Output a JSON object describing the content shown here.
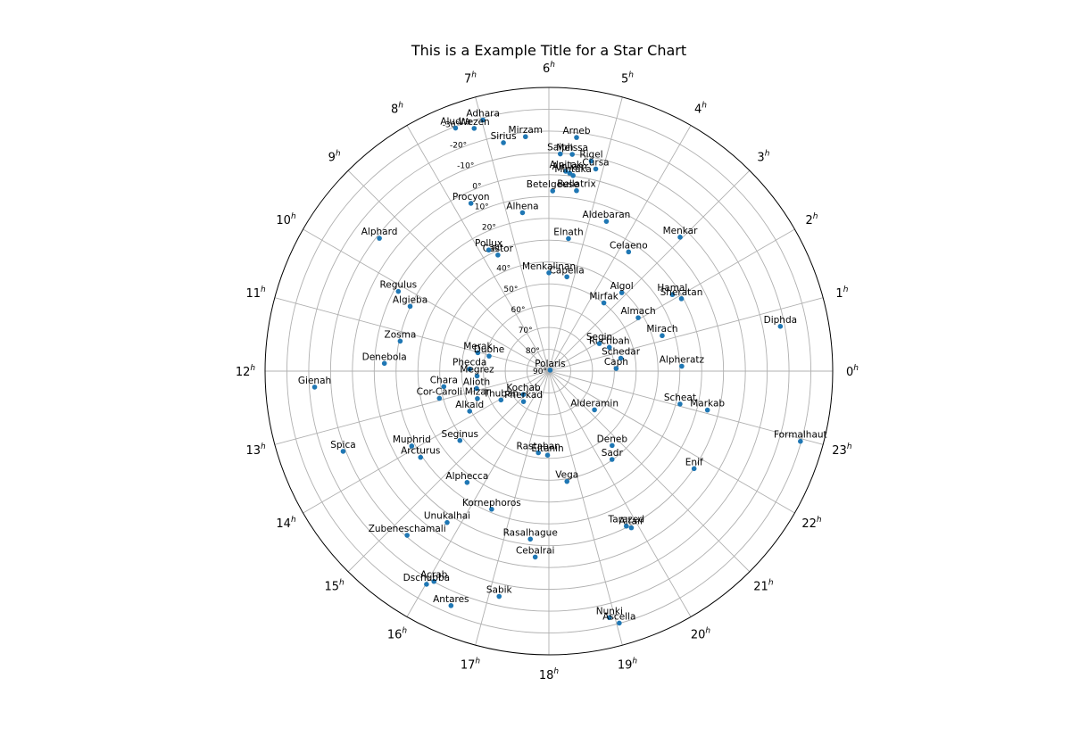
{
  "chart_data": {
    "type": "scatter",
    "projection": "polar",
    "title": "This is a Example Title for a Star Chart",
    "x_axis": {
      "quantity": "right ascension",
      "unit": "h",
      "range": [
        0,
        24
      ],
      "direction": "counterclockwise",
      "zero_position": "right"
    },
    "r_axis": {
      "quantity": "declination",
      "unit": "deg",
      "range": [
        90,
        -40
      ],
      "center_value": 90
    },
    "ra_ticks": [
      0,
      1,
      2,
      3,
      4,
      5,
      6,
      7,
      8,
      9,
      10,
      11,
      12,
      13,
      14,
      15,
      16,
      17,
      18,
      19,
      20,
      21,
      22,
      23
    ],
    "ra_tick_unit": "h",
    "dec_ticks": [
      "-30°",
      "-20°",
      "-10°",
      "0°",
      "10°",
      "20°",
      "30°",
      "40°",
      "50°",
      "60°",
      "70°",
      "80°",
      "90°"
    ],
    "dec_tick_values": [
      -30,
      -20,
      -10,
      0,
      10,
      20,
      30,
      40,
      50,
      60,
      70,
      80,
      90
    ],
    "grid": true,
    "marker_color": "#1f77b4",
    "stars": [
      {
        "name": "Polaris",
        "ra": 2.53,
        "dec": 89.26
      },
      {
        "name": "Kochab",
        "ra": 14.84,
        "dec": 74.16
      },
      {
        "name": "Pherkad",
        "ra": 15.35,
        "dec": 71.83
      },
      {
        "name": "Caph",
        "ra": 0.15,
        "dec": 59.15
      },
      {
        "name": "Schedar",
        "ra": 0.68,
        "dec": 56.54
      },
      {
        "name": "Ruchbah",
        "ra": 1.43,
        "dec": 60.24
      },
      {
        "name": "Segin",
        "ra": 1.91,
        "dec": 63.67
      },
      {
        "name": "Alpheratz",
        "ra": 0.14,
        "dec": 29.09
      },
      {
        "name": "Mirach",
        "ra": 1.16,
        "dec": 35.62
      },
      {
        "name": "Almach",
        "ra": 2.06,
        "dec": 42.33
      },
      {
        "name": "Hamal",
        "ra": 2.12,
        "dec": 23.46
      },
      {
        "name": "Sheratan",
        "ra": 1.91,
        "dec": 20.81
      },
      {
        "name": "Menkar",
        "ra": 3.04,
        "dec": 4.09
      },
      {
        "name": "Diphda",
        "ra": 0.73,
        "dec": -17.99
      },
      {
        "name": "Algol",
        "ra": 3.14,
        "dec": 40.96
      },
      {
        "name": "Mirfak",
        "ra": 3.41,
        "dec": 49.86
      },
      {
        "name": "Elnath",
        "ra": 5.44,
        "dec": 28.61
      },
      {
        "name": "Celaeno",
        "ra": 3.75,
        "dec": 24.29
      },
      {
        "name": "Aldebaran",
        "ra": 4.6,
        "dec": 16.51
      },
      {
        "name": "Capella",
        "ra": 5.28,
        "dec": 46.0
      },
      {
        "name": "Menkalinan",
        "ra": 6.0,
        "dec": 44.95
      },
      {
        "name": "Bellatrix",
        "ra": 5.42,
        "dec": 6.35
      },
      {
        "name": "Betelgeuse",
        "ra": 5.92,
        "dec": 7.41
      },
      {
        "name": "Alnitak",
        "ra": 5.68,
        "dec": -1.94
      },
      {
        "name": "Alnilam",
        "ra": 5.6,
        "dec": -1.2
      },
      {
        "name": "Mintaka",
        "ra": 5.53,
        "dec": -0.3
      },
      {
        "name": "Rigel",
        "ra": 5.24,
        "dec": -8.2
      },
      {
        "name": "Saiph",
        "ra": 5.8,
        "dec": -9.67
      },
      {
        "name": "Meissa",
        "ra": 5.59,
        "dec": -9.9
      },
      {
        "name": "Cursa",
        "ra": 5.13,
        "dec": -5.09
      },
      {
        "name": "Arneb",
        "ra": 5.55,
        "dec": -17.82
      },
      {
        "name": "Sirius",
        "ra": 6.75,
        "dec": -16.72
      },
      {
        "name": "Mirzam",
        "ra": 6.38,
        "dec": -17.96
      },
      {
        "name": "Adhara",
        "ra": 6.98,
        "dec": -28.97
      },
      {
        "name": "Wezen",
        "ra": 7.14,
        "dec": -26.39
      },
      {
        "name": "Aludra",
        "ra": 7.4,
        "dec": -29.3
      },
      {
        "name": "Procyon",
        "ra": 7.66,
        "dec": 5.22
      },
      {
        "name": "Alhena",
        "ra": 6.63,
        "dec": 16.4
      },
      {
        "name": "Castor",
        "ra": 7.58,
        "dec": 31.89
      },
      {
        "name": "Pollux",
        "ra": 7.76,
        "dec": 28.03
      },
      {
        "name": "Alphard",
        "ra": 9.46,
        "dec": -8.66
      },
      {
        "name": "Regulus",
        "ra": 10.14,
        "dec": 11.97
      },
      {
        "name": "Algieba",
        "ra": 10.33,
        "dec": 19.84
      },
      {
        "name": "Zosma",
        "ra": 11.24,
        "dec": 20.52
      },
      {
        "name": "Denebola",
        "ra": 11.82,
        "dec": 14.57
      },
      {
        "name": "Merak",
        "ra": 11.03,
        "dec": 56.38
      },
      {
        "name": "Dubhe",
        "ra": 11.06,
        "dec": 61.75
      },
      {
        "name": "Phecda",
        "ra": 11.9,
        "dec": 53.69
      },
      {
        "name": "Megrez",
        "ra": 12.26,
        "dec": 57.03
      },
      {
        "name": "Alioth",
        "ra": 12.9,
        "dec": 55.96
      },
      {
        "name": "Mizar",
        "ra": 13.4,
        "dec": 54.93
      },
      {
        "name": "Alkaid",
        "ra": 13.79,
        "dec": 49.31
      },
      {
        "name": "Chara",
        "ra": 12.56,
        "dec": 41.36
      },
      {
        "name": "Cor-Caroli",
        "ra": 12.93,
        "dec": 38.32
      },
      {
        "name": "Thuban",
        "ra": 14.07,
        "dec": 64.38
      },
      {
        "name": "Gienah",
        "ra": 12.26,
        "dec": -17.54
      },
      {
        "name": "Spica",
        "ra": 13.42,
        "dec": -11.16
      },
      {
        "name": "Muphrid",
        "ra": 13.91,
        "dec": 18.4
      },
      {
        "name": "Arcturus",
        "ra": 14.26,
        "dec": 19.18
      },
      {
        "name": "Seginus",
        "ra": 14.53,
        "dec": 38.31
      },
      {
        "name": "Alphecca",
        "ra": 15.58,
        "dec": 26.71
      },
      {
        "name": "Kornephoros",
        "ra": 16.5,
        "dec": 21.49
      },
      {
        "name": "Unukalhai",
        "ra": 15.74,
        "dec": 6.43
      },
      {
        "name": "Zubeneschamali",
        "ra": 15.28,
        "dec": -9.38
      },
      {
        "name": "Acrab",
        "ra": 16.09,
        "dec": -19.81
      },
      {
        "name": "Dschubba",
        "ra": 16.01,
        "dec": -22.62
      },
      {
        "name": "Antares",
        "ra": 16.49,
        "dec": -26.43
      },
      {
        "name": "Sabik",
        "ra": 17.17,
        "dec": -15.72
      },
      {
        "name": "Rasalhague",
        "ra": 17.58,
        "dec": 12.56
      },
      {
        "name": "Cebalrai",
        "ra": 17.72,
        "dec": 4.57
      },
      {
        "name": "Rastaban",
        "ra": 17.51,
        "dec": 52.3
      },
      {
        "name": "Eltanin",
        "ra": 17.94,
        "dec": 51.49
      },
      {
        "name": "Vega",
        "ra": 18.62,
        "dec": 38.78
      },
      {
        "name": "Nunki",
        "ra": 18.92,
        "dec": -26.3
      },
      {
        "name": "Ascella",
        "ra": 19.04,
        "dec": -29.88
      },
      {
        "name": "Tarazed",
        "ra": 19.77,
        "dec": 10.61
      },
      {
        "name": "Altair",
        "ra": 19.85,
        "dec": 8.87
      },
      {
        "name": "Sadr",
        "ra": 20.37,
        "dec": 40.26
      },
      {
        "name": "Deneb",
        "ra": 20.69,
        "dec": 45.28
      },
      {
        "name": "Alderamin",
        "ra": 21.31,
        "dec": 62.59
      },
      {
        "name": "Enif",
        "ra": 21.74,
        "dec": 9.87
      },
      {
        "name": "Markab",
        "ra": 23.08,
        "dec": 15.21
      },
      {
        "name": "Scheat",
        "ra": 23.06,
        "dec": 28.08
      },
      {
        "name": "Formalhaut",
        "ra": 22.96,
        "dec": -29.62
      }
    ]
  }
}
